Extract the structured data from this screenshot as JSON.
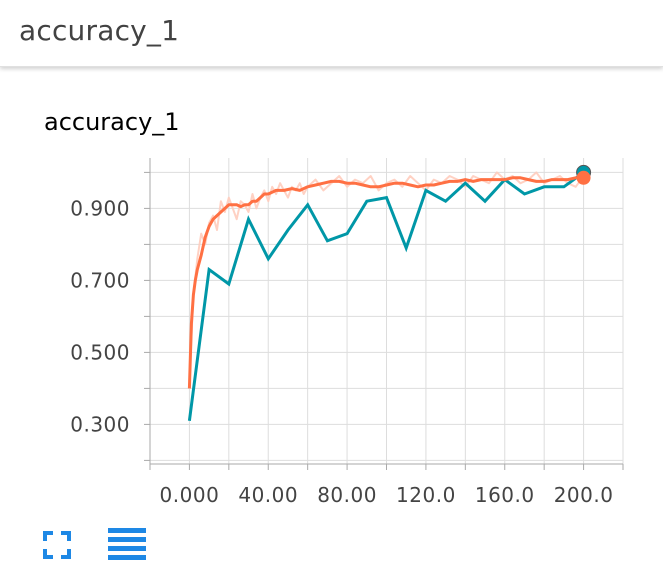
{
  "header": {
    "title": "accuracy_1"
  },
  "card": {
    "title": "accuracy_1"
  },
  "toolbar": {
    "fullscreen_icon": "fullscreen-icon",
    "data_table_icon": "data-table-icon"
  },
  "colors": {
    "smoothed": "#ff7043",
    "raw_light": "#ffccbc",
    "comparison": "#0097a7",
    "grid": "#dddddd",
    "axis": "#aaaaaa",
    "icon": "#1e88e5"
  },
  "chart_data": {
    "type": "line",
    "title": "accuracy_1",
    "xlabel": "",
    "ylabel": "",
    "xlim": [
      -20,
      220
    ],
    "ylim": [
      0.19,
      1.04
    ],
    "xticks": [
      0,
      40,
      80,
      120,
      160,
      200
    ],
    "xtick_labels": [
      "0.000",
      "40.00",
      "80.00",
      "120.0",
      "160.0",
      "200.0"
    ],
    "yticks": [
      0.3,
      0.5,
      0.7,
      0.9
    ],
    "ytick_labels": [
      "0.300",
      "0.500",
      "0.700",
      "0.900"
    ],
    "grid": true,
    "series": [
      {
        "id": "raw",
        "x": [
          0,
          2,
          4,
          6,
          8,
          10,
          12,
          14,
          16,
          18,
          20,
          22,
          24,
          26,
          28,
          30,
          32,
          34,
          36,
          38,
          40,
          42,
          44,
          46,
          48,
          50,
          52,
          54,
          56,
          58,
          60,
          64,
          68,
          72,
          76,
          80,
          84,
          88,
          92,
          96,
          100,
          104,
          108,
          112,
          116,
          120,
          124,
          128,
          132,
          136,
          140,
          144,
          148,
          152,
          156,
          160,
          164,
          168,
          172,
          176,
          180,
          184,
          188,
          192,
          196,
          200
        ],
        "values": [
          0.42,
          0.66,
          0.76,
          0.83,
          0.8,
          0.86,
          0.88,
          0.84,
          0.92,
          0.89,
          0.93,
          0.9,
          0.87,
          0.92,
          0.91,
          0.89,
          0.94,
          0.9,
          0.93,
          0.95,
          0.92,
          0.96,
          0.94,
          0.97,
          0.95,
          0.93,
          0.96,
          0.95,
          0.97,
          0.94,
          0.96,
          0.98,
          0.95,
          0.97,
          0.99,
          0.96,
          0.98,
          0.97,
          0.99,
          0.95,
          0.97,
          0.98,
          0.96,
          0.99,
          0.97,
          0.95,
          0.98,
          0.97,
          0.99,
          0.98,
          0.96,
          0.99,
          0.98,
          0.97,
          1.0,
          0.98,
          0.99,
          0.97,
          0.98,
          1.0,
          0.97,
          0.98,
          0.99,
          0.97,
          0.96,
          0.99
        ]
      },
      {
        "id": "smoothed",
        "x": [
          0,
          1,
          2,
          3,
          4,
          6,
          8,
          10,
          12,
          14,
          16,
          18,
          20,
          22,
          24,
          26,
          28,
          30,
          32,
          34,
          36,
          38,
          40,
          44,
          48,
          52,
          56,
          60,
          64,
          68,
          72,
          76,
          80,
          84,
          88,
          92,
          96,
          100,
          104,
          108,
          112,
          116,
          120,
          124,
          128,
          132,
          136,
          140,
          144,
          148,
          152,
          156,
          160,
          164,
          168,
          172,
          176,
          180,
          184,
          188,
          192,
          196,
          200
        ],
        "values": [
          0.4,
          0.58,
          0.66,
          0.7,
          0.73,
          0.77,
          0.82,
          0.85,
          0.87,
          0.88,
          0.89,
          0.9,
          0.91,
          0.91,
          0.91,
          0.905,
          0.91,
          0.91,
          0.92,
          0.92,
          0.93,
          0.94,
          0.94,
          0.95,
          0.95,
          0.955,
          0.95,
          0.96,
          0.965,
          0.97,
          0.975,
          0.975,
          0.97,
          0.97,
          0.965,
          0.96,
          0.96,
          0.965,
          0.97,
          0.97,
          0.965,
          0.96,
          0.965,
          0.965,
          0.97,
          0.975,
          0.975,
          0.98,
          0.975,
          0.98,
          0.98,
          0.98,
          0.98,
          0.985,
          0.985,
          0.98,
          0.975,
          0.975,
          0.98,
          0.98,
          0.98,
          0.985,
          0.985
        ]
      },
      {
        "id": "comparison",
        "x": [
          0,
          10,
          20,
          30,
          40,
          50,
          60,
          70,
          80,
          90,
          100,
          110,
          120,
          130,
          140,
          150,
          160,
          170,
          180,
          190,
          200
        ],
        "values": [
          0.31,
          0.73,
          0.69,
          0.87,
          0.76,
          0.84,
          0.91,
          0.81,
          0.83,
          0.92,
          0.93,
          0.79,
          0.95,
          0.92,
          0.97,
          0.92,
          0.98,
          0.94,
          0.96,
          0.96,
          1.0
        ]
      }
    ]
  }
}
